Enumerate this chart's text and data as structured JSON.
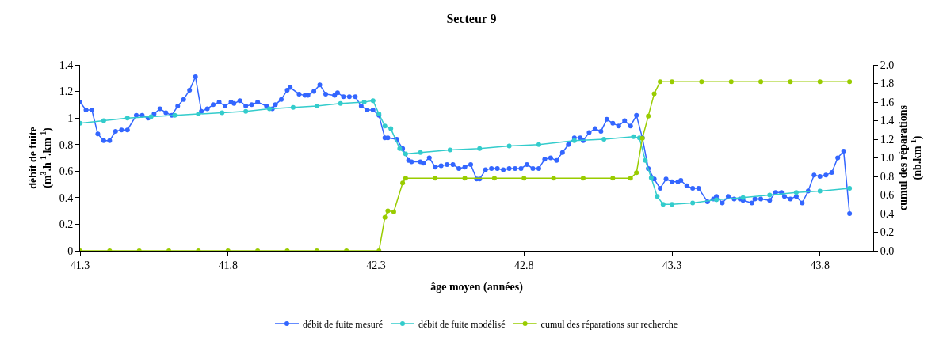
{
  "chart_data": {
    "type": "line",
    "title": "Secteur 9",
    "xlabel": "âge moyen (années)",
    "ylabel": "débit de fuite\n(m$^{3}$.h$^{-1}$.km$^{-1}$)",
    "y2label": "cumul des réparations\n(nb.km$^{-1}$)",
    "xlim": [
      41.3,
      43.98
    ],
    "xticks": [
      41.3,
      41.8,
      42.3,
      42.8,
      43.3,
      43.8
    ],
    "ylim": [
      0,
      1.4
    ],
    "yticks": [
      0,
      0.2,
      0.4,
      0.6,
      0.8,
      1,
      1.2,
      1.4
    ],
    "y2lim": [
      0,
      2
    ],
    "y2ticks": [
      {
        "value": 0,
        "label": "0.0"
      },
      {
        "value": 0.2,
        "label": "0.2"
      },
      {
        "value": 0.4,
        "label": "0.4"
      },
      {
        "value": 0.6,
        "label": "0.6"
      },
      {
        "value": 0.8,
        "label": "0.8"
      },
      {
        "value": 1,
        "label": "1.0"
      },
      {
        "value": 1.2,
        "label": "1.2"
      },
      {
        "value": 1.4,
        "label": "1.4"
      },
      {
        "value": 1.6,
        "label": "1.6"
      },
      {
        "value": 1.8,
        "label": "1.8"
      },
      {
        "value": 2,
        "label": "2.0"
      }
    ],
    "legend": "bottom",
    "marker": "circle",
    "line_style": "solid",
    "series": [
      {
        "name": "débit de fuite mesuré",
        "color": "#3366ff",
        "x": [
          41.3,
          41.32,
          41.34,
          41.36,
          41.38,
          41.4,
          41.42,
          41.44,
          41.46,
          41.49,
          41.51,
          41.53,
          41.55,
          41.57,
          41.59,
          41.61,
          41.63,
          41.65,
          41.67,
          41.69,
          41.71,
          41.73,
          41.75,
          41.77,
          41.79,
          41.81,
          41.82,
          41.84,
          41.86,
          41.88,
          41.9,
          41.93,
          41.95,
          41.96,
          41.98,
          42.0,
          42.01,
          42.04,
          42.06,
          42.07,
          42.09,
          42.11,
          42.13,
          42.16,
          42.17,
          42.19,
          42.21,
          42.23,
          42.25,
          42.27,
          42.29,
          42.31,
          42.33,
          42.34,
          42.37,
          42.39,
          42.41,
          42.42,
          42.45,
          42.46,
          42.48,
          42.5,
          42.52,
          42.54,
          42.56,
          42.58,
          42.6,
          42.62,
          42.64,
          42.65,
          42.67,
          42.69,
          42.71,
          42.73,
          42.75,
          42.77,
          42.79,
          42.81,
          42.83,
          42.85,
          42.87,
          42.89,
          42.91,
          42.93,
          42.95,
          42.97,
          42.99,
          43.0,
          43.02,
          43.04,
          43.06,
          43.08,
          43.1,
          43.12,
          43.14,
          43.16,
          43.18,
          43.2,
          43.22,
          43.24,
          43.26,
          43.28,
          43.3,
          43.32,
          43.33,
          43.35,
          43.37,
          43.39,
          43.42,
          43.44,
          43.45,
          43.47,
          43.49,
          43.51,
          43.53,
          43.54,
          43.57,
          43.58,
          43.6,
          43.63,
          43.65,
          43.67,
          43.68,
          43.7,
          43.72,
          43.74,
          43.76,
          43.78,
          43.8,
          43.82,
          43.84,
          43.86,
          43.88,
          43.9
        ],
        "values": [
          1.12,
          1.06,
          1.06,
          0.88,
          0.83,
          0.83,
          0.9,
          0.91,
          0.91,
          1.02,
          1.02,
          1.0,
          1.03,
          1.07,
          1.04,
          1.02,
          1.09,
          1.14,
          1.21,
          1.31,
          1.05,
          1.07,
          1.1,
          1.12,
          1.09,
          1.12,
          1.11,
          1.13,
          1.09,
          1.1,
          1.12,
          1.09,
          1.07,
          1.1,
          1.14,
          1.21,
          1.23,
          1.18,
          1.17,
          1.17,
          1.2,
          1.25,
          1.18,
          1.17,
          1.19,
          1.16,
          1.16,
          1.16,
          1.09,
          1.06,
          1.06,
          1.02,
          0.85,
          0.85,
          0.84,
          0.77,
          0.68,
          0.67,
          0.67,
          0.66,
          0.7,
          0.63,
          0.64,
          0.65,
          0.65,
          0.62,
          0.63,
          0.65,
          0.54,
          0.54,
          0.61,
          0.62,
          0.62,
          0.61,
          0.62,
          0.62,
          0.62,
          0.65,
          0.62,
          0.62,
          0.69,
          0.7,
          0.68,
          0.74,
          0.8,
          0.85,
          0.85,
          0.83,
          0.89,
          0.92,
          0.9,
          0.99,
          0.96,
          0.94,
          0.98,
          0.94,
          1.02,
          0.85,
          0.62,
          0.54,
          0.47,
          0.54,
          0.52,
          0.52,
          0.53,
          0.49,
          0.47,
          0.47,
          0.37,
          0.39,
          0.41,
          0.36,
          0.41,
          0.39,
          0.39,
          0.38,
          0.36,
          0.39,
          0.39,
          0.38,
          0.44,
          0.44,
          0.41,
          0.39,
          0.41,
          0.36,
          0.45,
          0.57,
          0.56,
          0.57,
          0.59,
          0.7,
          0.75,
          0.28
        ]
      },
      {
        "name": "débit de fuite modélisé",
        "color": "#33cccc",
        "x": [
          41.3,
          41.38,
          41.46,
          41.54,
          41.62,
          41.7,
          41.78,
          41.86,
          41.94,
          42.02,
          42.1,
          42.18,
          42.26,
          42.29,
          42.31,
          42.33,
          42.35,
          42.38,
          42.4,
          42.45,
          42.55,
          42.65,
          42.75,
          42.85,
          42.97,
          43.07,
          43.17,
          43.19,
          43.21,
          43.23,
          43.25,
          43.27,
          43.3,
          43.37,
          43.45,
          43.54,
          43.63,
          43.72,
          43.8,
          43.9
        ],
        "values": [
          0.96,
          0.98,
          1.0,
          1.01,
          1.02,
          1.03,
          1.04,
          1.05,
          1.07,
          1.08,
          1.09,
          1.11,
          1.12,
          1.13,
          1.03,
          0.94,
          0.92,
          0.77,
          0.73,
          0.74,
          0.76,
          0.77,
          0.79,
          0.8,
          0.83,
          0.84,
          0.86,
          0.85,
          0.68,
          0.55,
          0.41,
          0.35,
          0.35,
          0.36,
          0.385,
          0.4,
          0.42,
          0.44,
          0.45,
          0.47
        ]
      },
      {
        "name": "cumul des réparations sur recherche",
        "color": "#99cc00",
        "axis": "y2",
        "x": [
          41.3,
          41.4,
          41.5,
          41.6,
          41.7,
          41.8,
          41.9,
          42.0,
          42.1,
          42.2,
          42.31,
          42.33,
          42.34,
          42.36,
          42.39,
          42.4,
          42.5,
          42.6,
          42.7,
          42.8,
          42.9,
          43.0,
          43.1,
          43.16,
          43.18,
          43.2,
          43.22,
          43.24,
          43.26,
          43.3,
          43.4,
          43.5,
          43.6,
          43.7,
          43.8,
          43.9
        ],
        "values": [
          0,
          0,
          0,
          0,
          0,
          0,
          0,
          0,
          0,
          0,
          0,
          0.36,
          0.43,
          0.42,
          0.73,
          0.78,
          0.78,
          0.78,
          0.78,
          0.78,
          0.78,
          0.78,
          0.78,
          0.78,
          0.84,
          1.21,
          1.45,
          1.69,
          1.82,
          1.82,
          1.82,
          1.82,
          1.82,
          1.82,
          1.82,
          1.82
        ]
      }
    ]
  }
}
